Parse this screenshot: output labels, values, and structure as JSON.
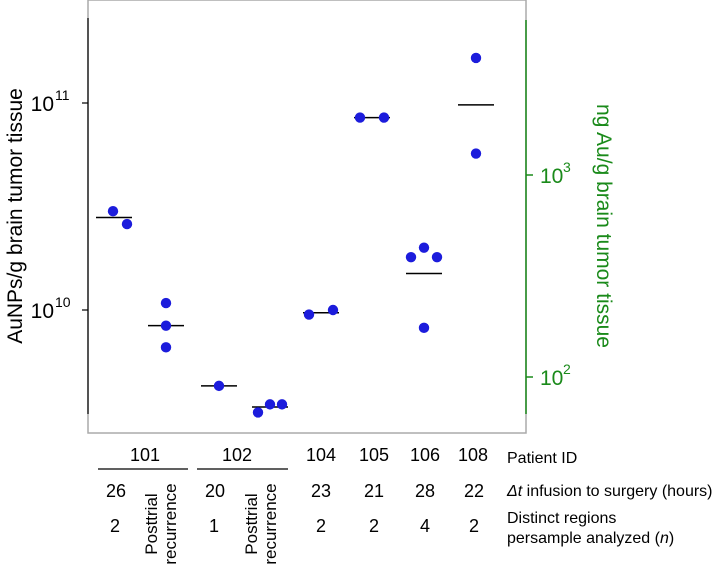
{
  "chart_data": {
    "type": "scatter",
    "scale": "log",
    "ylabel_left": "AuNPs/g brain tumor tissue",
    "ylabel_right": "ng Au/g brain tumor tissue",
    "left_ticks": [
      {
        "value": 10000000000.0,
        "base": "10",
        "exp": "10"
      },
      {
        "value": 100000000000.0,
        "base": "10",
        "exp": "11"
      }
    ],
    "right_ticks": [
      {
        "value": 100,
        "base": "10",
        "exp": "2"
      },
      {
        "value": 1000,
        "base": "10",
        "exp": "3"
      }
    ],
    "right_axis_color": "#1a8a1a",
    "point_color": "#1c1cdc",
    "groups": [
      {
        "key": "101",
        "points": [
          30000000000.0,
          26000000000.0
        ],
        "median": 28000000000.0
      },
      {
        "key": "101-posttrial",
        "points": [
          10800000000.0,
          8400000000.0,
          6600000000.0
        ],
        "median": 8400000000.0
      },
      {
        "key": "102",
        "points": [
          4300000000.0
        ],
        "median": 4300000000.0
      },
      {
        "key": "102-posttrial",
        "points": [
          3200000000.0,
          3500000000.0,
          3500000000.0
        ],
        "median": 3400000000.0
      },
      {
        "key": "104",
        "points": [
          9500000000.0,
          10000000000.0
        ],
        "median": 9700000000.0
      },
      {
        "key": "105",
        "points": [
          85000000000.0,
          85000000000.0
        ],
        "median": 85000000000.0
      },
      {
        "key": "106",
        "points": [
          18000000000.0,
          20000000000.0,
          18000000000.0,
          8200000000.0
        ],
        "median": 15000000000.0
      },
      {
        "key": "108",
        "points": [
          165000000000.0,
          57000000000.0
        ],
        "median": 98000000000.0
      }
    ]
  },
  "table": {
    "patient_ids": [
      "101",
      "102",
      "104",
      "105",
      "106",
      "108"
    ],
    "hours": [
      "26",
      "20",
      "23",
      "21",
      "28",
      "22"
    ],
    "regions": [
      "2",
      "1",
      "2",
      "2",
      "4",
      "2"
    ],
    "posttrial_line1": "Posttrial",
    "posttrial_line2": "recurrence",
    "row_patient_id": "Patient ID",
    "row_delta_symbol": "Δt",
    "row_delta_rest": " infusion to surgery (hours)",
    "row_regions_line1": "Distinct regions",
    "row_regions_line2_a": "persample analyzed (",
    "row_regions_line2_n": "n",
    "row_regions_line2_b": ")"
  }
}
